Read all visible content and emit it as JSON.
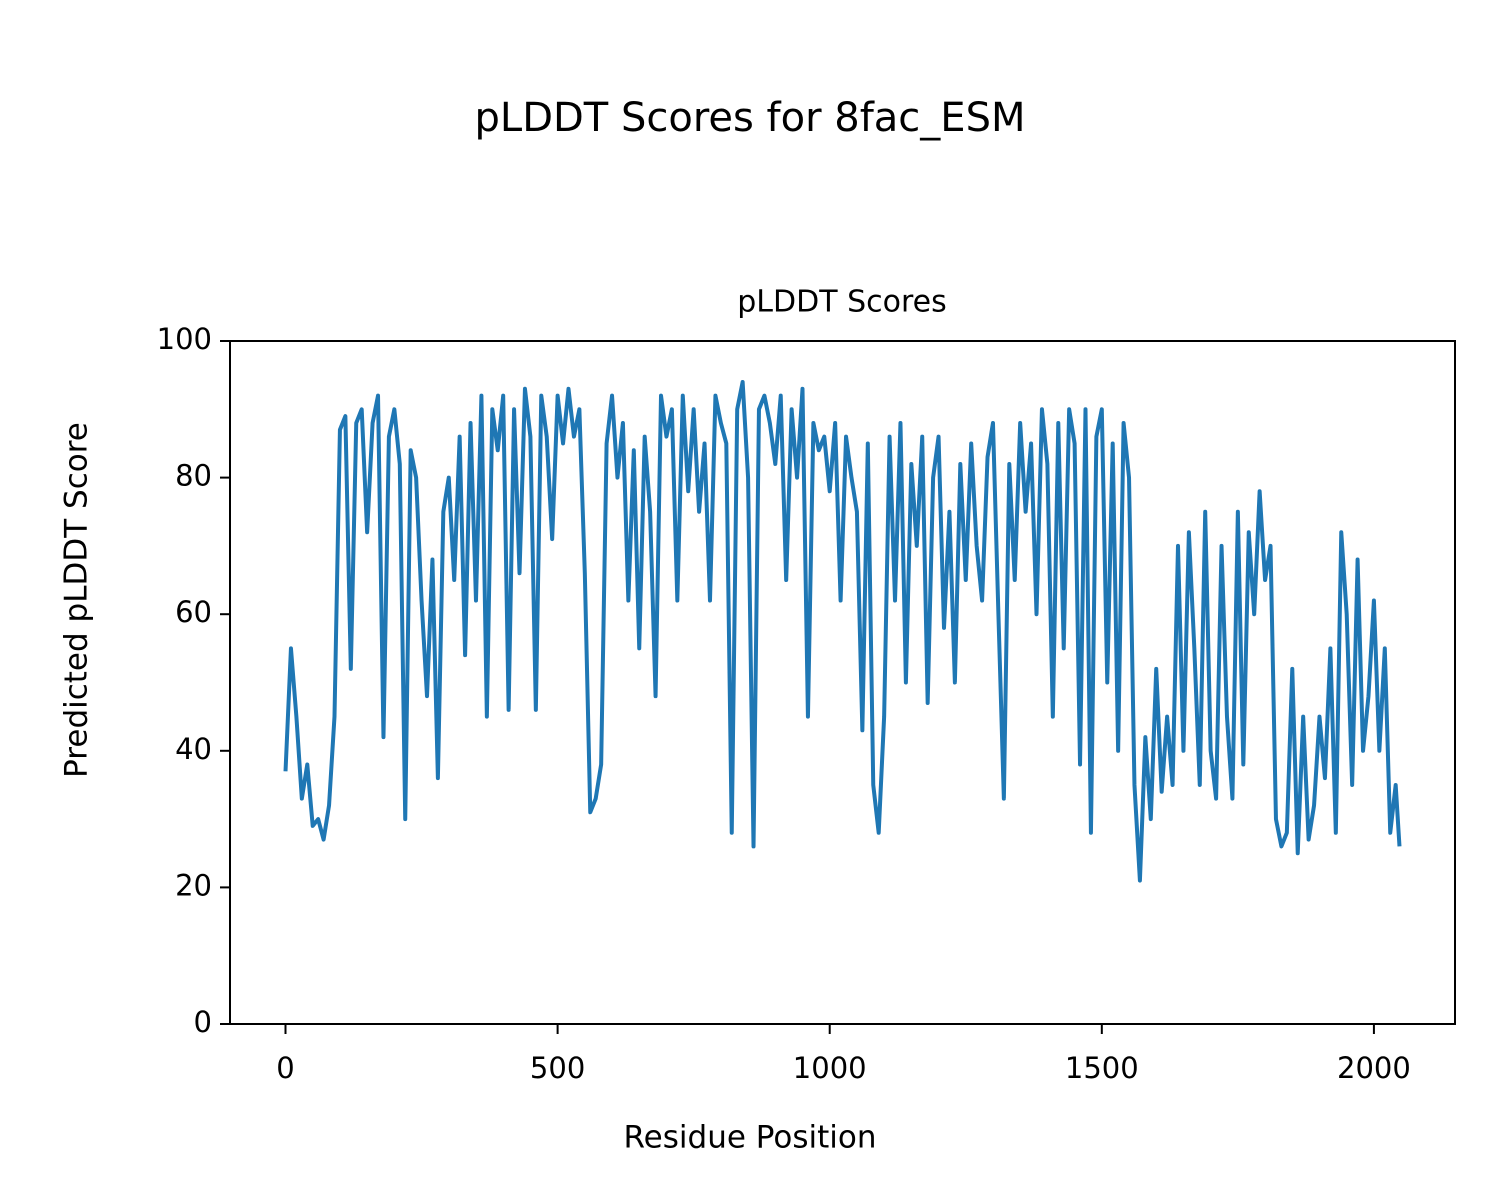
{
  "chart_data": {
    "type": "line",
    "suptitle": "pLDDT Scores for 8fac_ESM",
    "title": "pLDDT Scores",
    "x_label": "Residue Position",
    "y_label": "Predicted pLDDT Score",
    "x": [
      0,
      10,
      20,
      30,
      40,
      50,
      60,
      70,
      80,
      90,
      100,
      110,
      120,
      130,
      140,
      150,
      160,
      170,
      180,
      190,
      200,
      210,
      220,
      230,
      240,
      250,
      260,
      270,
      280,
      290,
      300,
      310,
      320,
      330,
      340,
      350,
      360,
      370,
      380,
      390,
      400,
      410,
      420,
      430,
      440,
      450,
      460,
      470,
      480,
      490,
      500,
      510,
      520,
      530,
      540,
      550,
      560,
      570,
      580,
      590,
      600,
      610,
      620,
      630,
      640,
      650,
      660,
      670,
      680,
      690,
      700,
      710,
      720,
      730,
      740,
      750,
      760,
      770,
      780,
      790,
      800,
      810,
      820,
      830,
      840,
      850,
      860,
      870,
      880,
      890,
      900,
      910,
      920,
      930,
      940,
      950,
      960,
      970,
      980,
      990,
      1000,
      1010,
      1020,
      1030,
      1040,
      1050,
      1060,
      1070,
      1080,
      1090,
      1100,
      1110,
      1120,
      1130,
      1140,
      1150,
      1160,
      1170,
      1180,
      1190,
      1200,
      1210,
      1220,
      1230,
      1240,
      1250,
      1260,
      1270,
      1280,
      1290,
      1300,
      1310,
      1320,
      1330,
      1340,
      1350,
      1360,
      1370,
      1380,
      1390,
      1400,
      1410,
      1420,
      1430,
      1440,
      1450,
      1460,
      1470,
      1480,
      1490,
      1500,
      1510,
      1520,
      1530,
      1540,
      1550,
      1560,
      1570,
      1580,
      1590,
      1600,
      1610,
      1620,
      1630,
      1640,
      1650,
      1660,
      1670,
      1680,
      1690,
      1700,
      1710,
      1720,
      1730,
      1740,
      1750,
      1760,
      1770,
      1780,
      1790,
      1800,
      1810,
      1820,
      1830,
      1840,
      1850,
      1860,
      1870,
      1880,
      1890,
      1900,
      1910,
      1920,
      1930,
      1940,
      1950,
      1960,
      1970,
      1980,
      1990,
      2000,
      2010,
      2020,
      2030,
      2040,
      2047
    ],
    "series": [
      {
        "name": "pLDDT",
        "color": "#1f77b4",
        "values": [
          37,
          55,
          45,
          33,
          38,
          29,
          30,
          27,
          32,
          45,
          87,
          89,
          52,
          88,
          90,
          72,
          88,
          92,
          42,
          86,
          90,
          82,
          30,
          84,
          80,
          62,
          48,
          68,
          36,
          75,
          80,
          65,
          86,
          54,
          88,
          62,
          92,
          45,
          90,
          84,
          92,
          46,
          90,
          66,
          93,
          86,
          46,
          92,
          86,
          71,
          92,
          85,
          93,
          86,
          90,
          66,
          31,
          33,
          38,
          85,
          92,
          80,
          88,
          62,
          84,
          55,
          86,
          75,
          48,
          92,
          86,
          90,
          62,
          92,
          78,
          90,
          75,
          85,
          62,
          92,
          88,
          85,
          28,
          90,
          94,
          80,
          26,
          90,
          92,
          88,
          82,
          92,
          65,
          90,
          80,
          93,
          45,
          88,
          84,
          86,
          78,
          88,
          62,
          86,
          80,
          75,
          43,
          85,
          35,
          28,
          45,
          86,
          62,
          88,
          50,
          82,
          70,
          86,
          47,
          80,
          86,
          58,
          75,
          50,
          82,
          65,
          85,
          70,
          62,
          83,
          88,
          60,
          33,
          82,
          65,
          88,
          75,
          85,
          60,
          90,
          82,
          45,
          88,
          55,
          90,
          85,
          38,
          90,
          28,
          86,
          90,
          50,
          85,
          40,
          88,
          80,
          35,
          21,
          42,
          30,
          52,
          34,
          45,
          35,
          70,
          40,
          72,
          55,
          35,
          75,
          40,
          33,
          70,
          45,
          33,
          75,
          38,
          72,
          60,
          78,
          65,
          70,
          30,
          26,
          28,
          52,
          25,
          45,
          27,
          32,
          45,
          36,
          55,
          28,
          72,
          60,
          35,
          68,
          40,
          48,
          62,
          40,
          55,
          28,
          35,
          26
        ]
      }
    ],
    "xlim": [
      -102,
      2149
    ],
    "ylim": [
      0,
      100
    ],
    "xticks": [
      0,
      500,
      1000,
      1500,
      2000
    ],
    "yticks": [
      0,
      20,
      40,
      60,
      80,
      100
    ]
  }
}
